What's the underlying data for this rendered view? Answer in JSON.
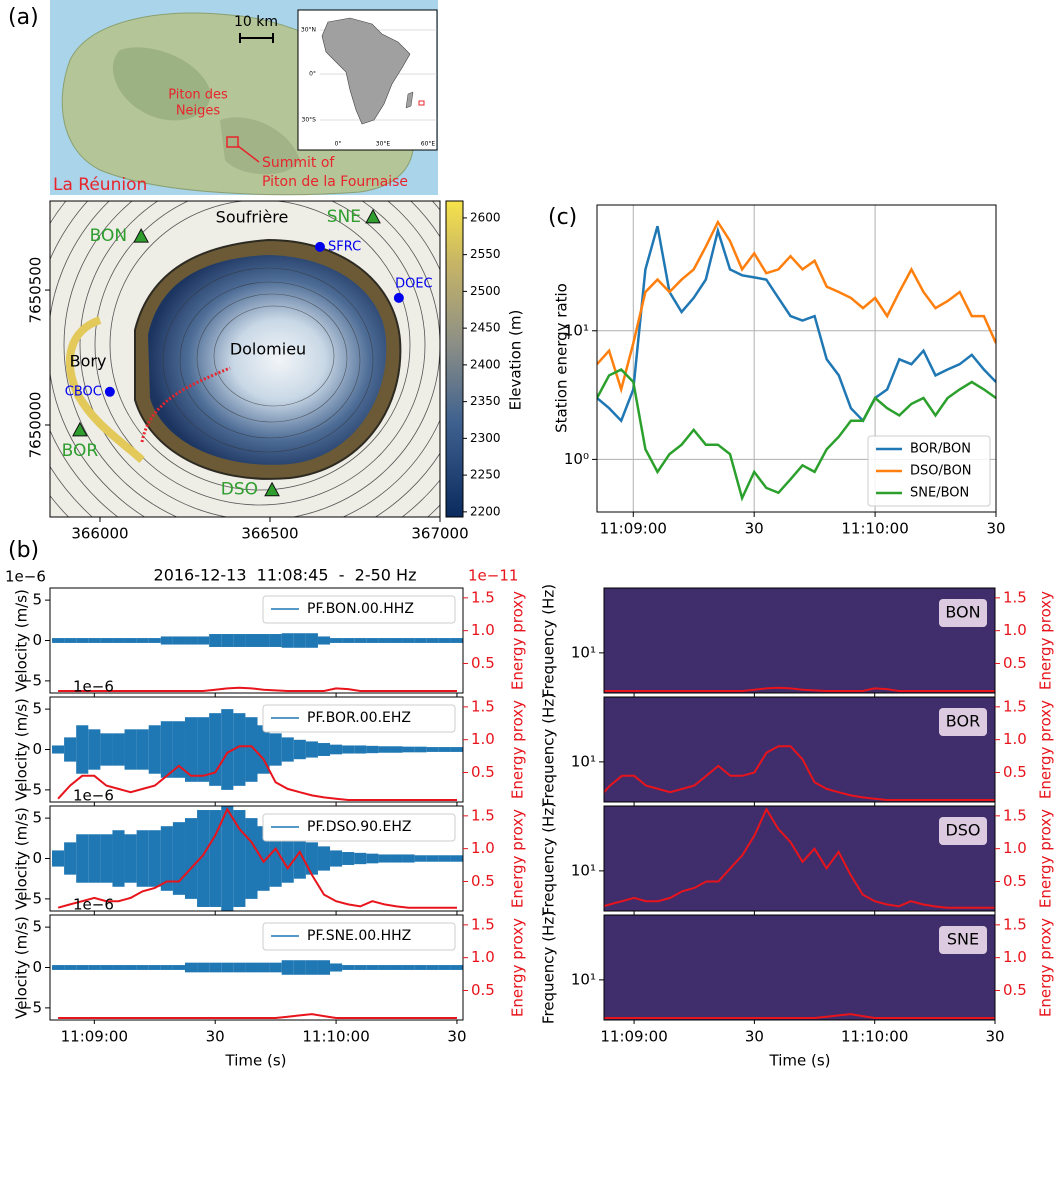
{
  "map": {
    "label": "(a)",
    "scale_bar": "10 km",
    "piton_des_neiges": [
      "Piton des",
      "Neiges"
    ],
    "summit": [
      "Summit of",
      "Piton de la Fournaise"
    ],
    "island": "La Réunion",
    "inset_lat_labels": [
      "30°N",
      "0°",
      "30°S"
    ],
    "inset_lon_labels": [
      "0°",
      "30°E",
      "60°E"
    ],
    "places": [
      "Soufrière",
      "Bory",
      "Dolomieu"
    ],
    "xlim": [
      365853,
      367000
    ],
    "ylim": [
      7649659,
      7650830
    ],
    "xticks": [
      366000,
      366500,
      367000
    ],
    "yticks": [
      7650000,
      7650500
    ],
    "stations": [
      {
        "name": "SNE",
        "x": 366803,
        "y": 7650771,
        "marker": "triangle",
        "color": "#2f9e2f"
      },
      {
        "name": "BON",
        "x": 366121,
        "y": 7650700,
        "marker": "triangle",
        "color": "#2f9e2f"
      },
      {
        "name": "SFRC",
        "x": 366647,
        "y": 7650660,
        "marker": "circle",
        "color": "#0000ee"
      },
      {
        "name": "DOEC",
        "x": 366879,
        "y": 7650471,
        "marker": "circle",
        "color": "#0000ee"
      },
      {
        "name": "CBOC",
        "x": 366029,
        "y": 7650123,
        "marker": "circle",
        "color": "#0000ee"
      },
      {
        "name": "BOR",
        "x": 365941,
        "y": 7649982,
        "marker": "triangle",
        "color": "#2f9e2f"
      },
      {
        "name": "DSO",
        "x": 366506,
        "y": 7649760,
        "marker": "triangle",
        "color": "#2f9e2f"
      }
    ],
    "colorbar": {
      "label": "Elevation (m)",
      "lim": [
        2193,
        2623
      ],
      "ticks": [
        2200,
        2250,
        2300,
        2350,
        2400,
        2450,
        2500,
        2550,
        2600
      ]
    }
  },
  "chart_data": [
    {
      "type": "line",
      "label": "(c)",
      "y_label": "Station energy ratio",
      "log_y": true,
      "grid": true,
      "legend": "lower right",
      "x": [
        -9,
        -6,
        -3,
        0,
        3,
        6,
        9,
        12,
        15,
        18,
        21,
        24,
        27,
        30,
        33,
        36,
        39,
        42,
        45,
        48,
        51,
        54,
        57,
        60,
        63,
        66,
        69,
        72,
        75,
        78,
        81,
        84,
        87,
        90
      ],
      "xlim": [
        -9,
        90
      ],
      "xticks": [
        {
          "value": 0,
          "label": "11:09:00"
        },
        30,
        {
          "value": 60,
          "label": "11:10:00"
        },
        {
          "value": 90,
          "label": "30"
        }
      ],
      "ylim": [
        0.39,
        95
      ],
      "yticks": [
        {
          "value": 1,
          "label": "10⁰"
        },
        {
          "value": 10,
          "label": "10¹"
        }
      ],
      "series": [
        {
          "name": "BOR/BON",
          "color": "#1f77b4",
          "values": [
            3,
            2.5,
            2,
            3.5,
            30,
            65,
            20,
            14,
            18,
            25,
            60,
            30,
            27,
            26,
            25,
            18,
            13,
            12,
            13,
            6,
            4.5,
            2.5,
            2,
            3,
            3.5,
            6,
            5.5,
            7,
            4.5,
            5,
            5.5,
            6.5,
            5,
            4
          ]
        },
        {
          "name": "DSO/BON",
          "color": "#ff7f0e",
          "values": [
            5.5,
            7,
            3.5,
            8,
            20,
            25,
            20,
            25,
            30,
            45,
            70,
            50,
            30,
            40,
            28,
            30,
            38,
            30,
            35,
            22,
            20,
            18,
            15,
            18,
            13,
            20,
            30,
            20,
            15,
            17,
            20,
            13,
            13,
            8
          ]
        },
        {
          "name": "SNE/BON",
          "color": "#2ca02c",
          "values": [
            3,
            4.5,
            5,
            4,
            1.2,
            0.8,
            1.1,
            1.3,
            1.7,
            1.3,
            1.3,
            1.1,
            0.5,
            0.8,
            0.6,
            0.55,
            0.7,
            0.9,
            0.8,
            1.2,
            1.5,
            2,
            2,
            3,
            2.5,
            2.2,
            2.7,
            3,
            2.2,
            3,
            3.5,
            4,
            3.5,
            3
          ]
        }
      ]
    },
    {
      "type": "waveform",
      "label": "(b)",
      "title": "2016-12-13  11:08:45  -  2-50 Hz",
      "y_offset_label": "1e−6",
      "y2_offset_label": "1e−11",
      "y_label": "Velocity (m/s)",
      "y2_label": "Energy proxy",
      "x_label": "Time (s)",
      "x": [
        -9,
        -6,
        -3,
        0,
        3,
        6,
        9,
        12,
        15,
        18,
        21,
        24,
        27,
        30,
        33,
        36,
        39,
        42,
        45,
        48,
        51,
        54,
        57,
        60,
        63,
        66,
        69,
        72,
        75,
        78,
        81,
        84,
        87,
        90
      ],
      "xlim": [
        -11,
        91.5
      ],
      "xticks": [
        {
          "value": 0,
          "label": "11:09:00"
        },
        30,
        {
          "value": 60,
          "label": "11:10:00"
        },
        {
          "value": 90,
          "label": "30"
        }
      ],
      "ylim": [
        -6.5,
        6.5
      ],
      "yticks": [
        {
          "value": -5,
          "label": "−5"
        },
        0,
        5
      ],
      "y2lim": [
        0.05,
        1.65
      ],
      "y2ticks": [
        0.5,
        {
          "value": 1,
          "label": "1.0"
        },
        1.5
      ],
      "energy_color": "#e8141c",
      "stations": [
        {
          "name": "PF.BON.00.HHZ",
          "color": "#1f77b4",
          "values": [
            0.3,
            0.3,
            0.3,
            0.3,
            0.3,
            0.3,
            0.3,
            0.3,
            0.3,
            0.5,
            0.5,
            0.5,
            0.5,
            0.8,
            0.8,
            0.8,
            0.8,
            0.8,
            0.8,
            0.9,
            0.9,
            0.9,
            0.5,
            0.3,
            0.3,
            0.3,
            0.3,
            0.3,
            0.3,
            0.3,
            0.3,
            0.3,
            0.3,
            0.3
          ],
          "energy": [
            0.08,
            0.08,
            0.08,
            0.08,
            0.08,
            0.08,
            0.08,
            0.08,
            0.08,
            0.08,
            0.08,
            0.08,
            0.08,
            0.1,
            0.12,
            0.13,
            0.12,
            0.1,
            0.09,
            0.08,
            0.08,
            0.08,
            0.08,
            0.12,
            0.11,
            0.08,
            0.08,
            0.08,
            0.08,
            0.08,
            0.08,
            0.08,
            0.08,
            0.08
          ]
        },
        {
          "name": "PF.BOR.00.EHZ",
          "color": "#1f77b4",
          "values": [
            0.5,
            1.5,
            3,
            2.5,
            2,
            2,
            2.5,
            2.5,
            3,
            3.5,
            3.5,
            4,
            4,
            4.5,
            5,
            4.5,
            4,
            3,
            2,
            1.5,
            1.2,
            1,
            0.8,
            0.6,
            0.5,
            0.5,
            0.45,
            0.4,
            0.4,
            0.35,
            0.35,
            0.3,
            0.3,
            0.3
          ],
          "energy": [
            0.1,
            0.3,
            0.45,
            0.45,
            0.3,
            0.25,
            0.2,
            0.25,
            0.3,
            0.45,
            0.6,
            0.45,
            0.45,
            0.5,
            0.8,
            0.9,
            0.9,
            0.7,
            0.35,
            0.25,
            0.2,
            0.15,
            0.12,
            0.1,
            0.08,
            0.08,
            0.08,
            0.08,
            0.08,
            0.08,
            0.08,
            0.08,
            0.08,
            0.08
          ]
        },
        {
          "name": "PF.DSO.90.EHZ",
          "color": "#1f77b4",
          "values": [
            1,
            2,
            3,
            3,
            3,
            3.5,
            3,
            3.5,
            3.5,
            4,
            4.5,
            5,
            6,
            6,
            6.5,
            6,
            5,
            4,
            3.5,
            3,
            2.5,
            2,
            1.5,
            1,
            0.8,
            0.7,
            0.6,
            0.5,
            0.5,
            0.5,
            0.4,
            0.4,
            0.4,
            0.4
          ],
          "energy": [
            0.1,
            0.15,
            0.2,
            0.25,
            0.2,
            0.2,
            0.25,
            0.35,
            0.4,
            0.5,
            0.5,
            0.7,
            0.9,
            1.2,
            1.6,
            1.3,
            1.1,
            0.8,
            1,
            0.7,
            0.95,
            0.6,
            0.3,
            0.2,
            0.15,
            0.12,
            0.2,
            0.15,
            0.12,
            0.1,
            0.1,
            0.1,
            0.1,
            0.1
          ]
        },
        {
          "name": "PF.SNE.00.HHZ",
          "color": "#1f77b4",
          "values": [
            0.3,
            0.3,
            0.3,
            0.3,
            0.3,
            0.3,
            0.3,
            0.3,
            0.3,
            0.3,
            0.3,
            0.6,
            0.6,
            0.6,
            0.6,
            0.6,
            0.6,
            0.6,
            0.6,
            0.9,
            0.9,
            0.9,
            0.9,
            0.5,
            0.3,
            0.3,
            0.3,
            0.3,
            0.3,
            0.3,
            0.3,
            0.3,
            0.3,
            0.3
          ],
          "energy": [
            0.08,
            0.08,
            0.08,
            0.08,
            0.08,
            0.08,
            0.08,
            0.08,
            0.08,
            0.08,
            0.08,
            0.08,
            0.08,
            0.08,
            0.08,
            0.08,
            0.08,
            0.08,
            0.08,
            0.1,
            0.12,
            0.14,
            0.11,
            0.08,
            0.08,
            0.08,
            0.08,
            0.08,
            0.08,
            0.08,
            0.08,
            0.08,
            0.08,
            0.08
          ]
        }
      ]
    },
    {
      "type": "spectrogram",
      "y_label": "Frequency (Hz)",
      "y2_label": "Energy proxy",
      "x_label": "Time (s)",
      "log_y": true,
      "background_color": "#3f2d6c",
      "xlim": [
        -7.5,
        90
      ],
      "xticks": [
        {
          "value": 0,
          "label": "11:09:00"
        },
        30,
        {
          "value": 60,
          "label": "11:10:00"
        },
        {
          "value": 90,
          "label": "30"
        }
      ],
      "ylim": [
        3,
        70
      ],
      "yticks": [
        {
          "value": 10,
          "label": "10¹"
        }
      ],
      "y2lim": [
        0.05,
        1.65
      ],
      "y2ticks": [
        0.5,
        {
          "value": 1,
          "label": "1.0"
        },
        1.5
      ],
      "tags": [
        "BON",
        "BOR",
        "DSO",
        "SNE"
      ]
    }
  ]
}
